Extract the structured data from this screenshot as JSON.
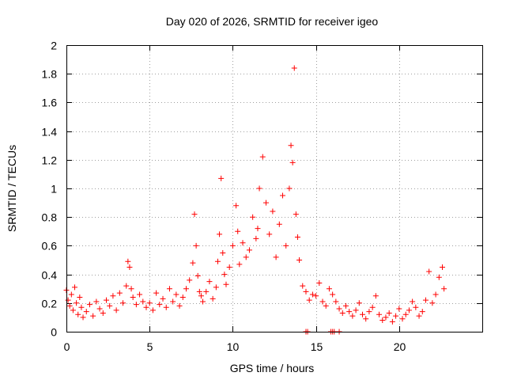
{
  "chart_data": {
    "type": "scatter",
    "title": "Day 020 of 2026, SRMTID for receiver igeo",
    "xlabel": "GPS time / hours",
    "ylabel": "SRMTID / TECUs",
    "xlim": [
      0,
      25
    ],
    "ylim": [
      0,
      2
    ],
    "x_ticks": [
      0,
      5,
      10,
      15,
      20
    ],
    "x_tick_labels": [
      "0",
      "5",
      "10",
      "15",
      "20"
    ],
    "y_ticks": [
      0,
      0.2,
      0.4,
      0.6,
      0.8,
      1,
      1.2,
      1.4,
      1.6,
      1.8,
      2
    ],
    "y_tick_labels": [
      "0",
      "0.2",
      "0.4",
      "0.6",
      "0.8",
      "1",
      "1.2",
      "1.4",
      "1.6",
      "1.8",
      "2"
    ],
    "grid": true,
    "marker": "+",
    "marker_color": "#ff0000",
    "series": [
      {
        "name": "SRMTID",
        "x": [
          0.0,
          0.1,
          0.2,
          0.3,
          0.4,
          0.5,
          0.6,
          0.7,
          0.8,
          0.9,
          1.0,
          1.2,
          1.4,
          1.6,
          1.8,
          2.0,
          2.2,
          2.4,
          2.6,
          2.8,
          3.0,
          3.2,
          3.4,
          3.6,
          3.7,
          3.8,
          3.9,
          4.0,
          4.2,
          4.4,
          4.6,
          4.8,
          5.0,
          5.2,
          5.4,
          5.6,
          5.8,
          6.0,
          6.2,
          6.4,
          6.6,
          6.8,
          7.0,
          7.2,
          7.4,
          7.6,
          7.7,
          7.8,
          7.9,
          8.0,
          8.1,
          8.2,
          8.4,
          8.6,
          8.8,
          9.0,
          9.1,
          9.2,
          9.3,
          9.4,
          9.5,
          9.6,
          9.8,
          10.0,
          10.2,
          10.3,
          10.4,
          10.6,
          10.8,
          11.0,
          11.2,
          11.4,
          11.5,
          11.6,
          11.8,
          12.0,
          12.2,
          12.4,
          12.6,
          12.8,
          13.0,
          13.2,
          13.4,
          13.5,
          13.6,
          13.7,
          13.8,
          13.9,
          14.0,
          14.2,
          14.4,
          14.6,
          14.8,
          15.0,
          15.2,
          15.4,
          15.6,
          15.8,
          16.0,
          16.2,
          16.4,
          16.6,
          16.8,
          17.0,
          17.2,
          17.4,
          17.6,
          17.8,
          18.0,
          18.2,
          18.4,
          18.6,
          18.8,
          19.0,
          19.2,
          19.4,
          19.6,
          19.8,
          20.0,
          20.2,
          20.4,
          20.6,
          20.8,
          21.0,
          21.2,
          21.4,
          21.6,
          21.8,
          22.0,
          22.2,
          22.4,
          22.6,
          22.7
        ],
        "y": [
          0.29,
          0.22,
          0.18,
          0.26,
          0.15,
          0.31,
          0.2,
          0.12,
          0.24,
          0.17,
          0.1,
          0.14,
          0.19,
          0.11,
          0.21,
          0.16,
          0.13,
          0.22,
          0.18,
          0.25,
          0.15,
          0.27,
          0.2,
          0.32,
          0.49,
          0.45,
          0.3,
          0.24,
          0.19,
          0.26,
          0.21,
          0.17,
          0.2,
          0.15,
          0.27,
          0.19,
          0.23,
          0.17,
          0.3,
          0.21,
          0.26,
          0.18,
          0.24,
          0.3,
          0.36,
          0.48,
          0.82,
          0.6,
          0.39,
          0.28,
          0.25,
          0.21,
          0.28,
          0.35,
          0.23,
          0.31,
          0.49,
          0.68,
          1.07,
          0.55,
          0.4,
          0.33,
          0.45,
          0.6,
          0.88,
          0.7,
          0.47,
          0.62,
          0.52,
          0.57,
          0.8,
          0.65,
          0.72,
          1.0,
          1.22,
          0.9,
          0.68,
          0.84,
          0.52,
          0.75,
          0.95,
          0.6,
          1.0,
          1.3,
          1.18,
          1.84,
          0.82,
          0.66,
          0.5,
          0.32,
          0.28,
          0.22,
          0.26,
          0.25,
          0.34,
          0.21,
          0.18,
          0.3,
          0.26,
          0.21,
          0.16,
          0.13,
          0.18,
          0.14,
          0.11,
          0.15,
          0.2,
          0.12,
          0.09,
          0.14,
          0.17,
          0.25,
          0.12,
          0.08,
          0.1,
          0.13,
          0.07,
          0.11,
          0.16,
          0.09,
          0.12,
          0.15,
          0.21,
          0.17,
          0.11,
          0.14,
          0.22,
          0.42,
          0.2,
          0.26,
          0.38,
          0.45,
          0.3
        ],
        "x_zero_points": [
          14.4,
          14.5,
          15.9,
          16.0,
          16.1,
          16.4
        ]
      }
    ]
  }
}
